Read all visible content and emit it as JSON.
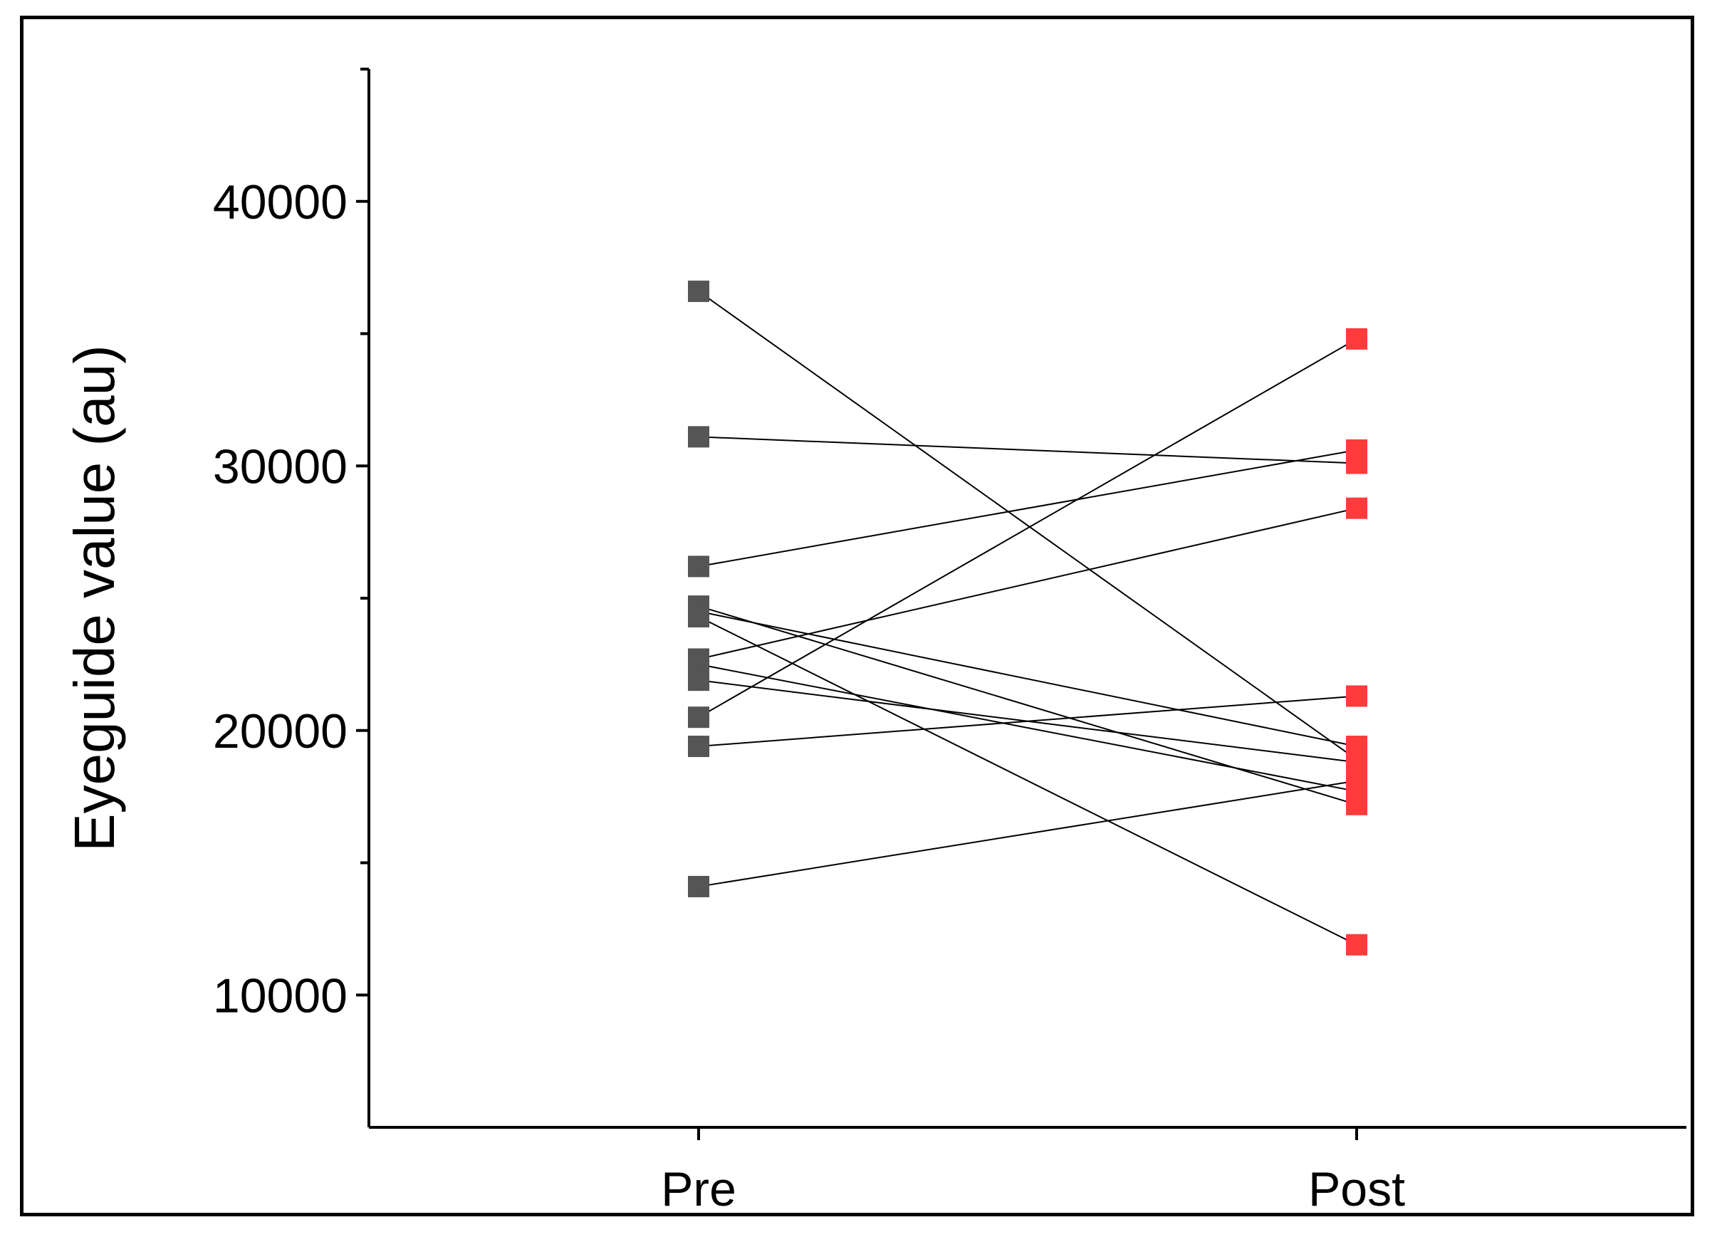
{
  "chart_data": {
    "type": "scatter",
    "subtype": "paired-line",
    "title": "",
    "xlabel": "",
    "ylabel": "Eyeguide value (au)",
    "categories": [
      "Pre",
      "Post"
    ],
    "ylim": [
      5000,
      45000
    ],
    "yticks": [
      10000,
      20000,
      30000,
      40000
    ],
    "y_minor_ticks": [
      15000,
      25000,
      35000,
      45000
    ],
    "grid": false,
    "legend": "none",
    "colors": {
      "pre": "#555555",
      "post": "#FF3B3B",
      "line": "#000000",
      "axis": "#000000"
    },
    "pairs": [
      {
        "pre": 36600,
        "post": 18900
      },
      {
        "pre": 31100,
        "post": 30100
      },
      {
        "pre": 26200,
        "post": 30600
      },
      {
        "pre": 24700,
        "post": 17200
      },
      {
        "pre": 24500,
        "post": 19400
      },
      {
        "pre": 24300,
        "post": 11900
      },
      {
        "pre": 22700,
        "post": 28400
      },
      {
        "pre": 22500,
        "post": 17700
      },
      {
        "pre": 21900,
        "post": 18800
      },
      {
        "pre": 20500,
        "post": 34800
      },
      {
        "pre": 19400,
        "post": 21300
      },
      {
        "pre": 14100,
        "post": 18100
      }
    ]
  }
}
